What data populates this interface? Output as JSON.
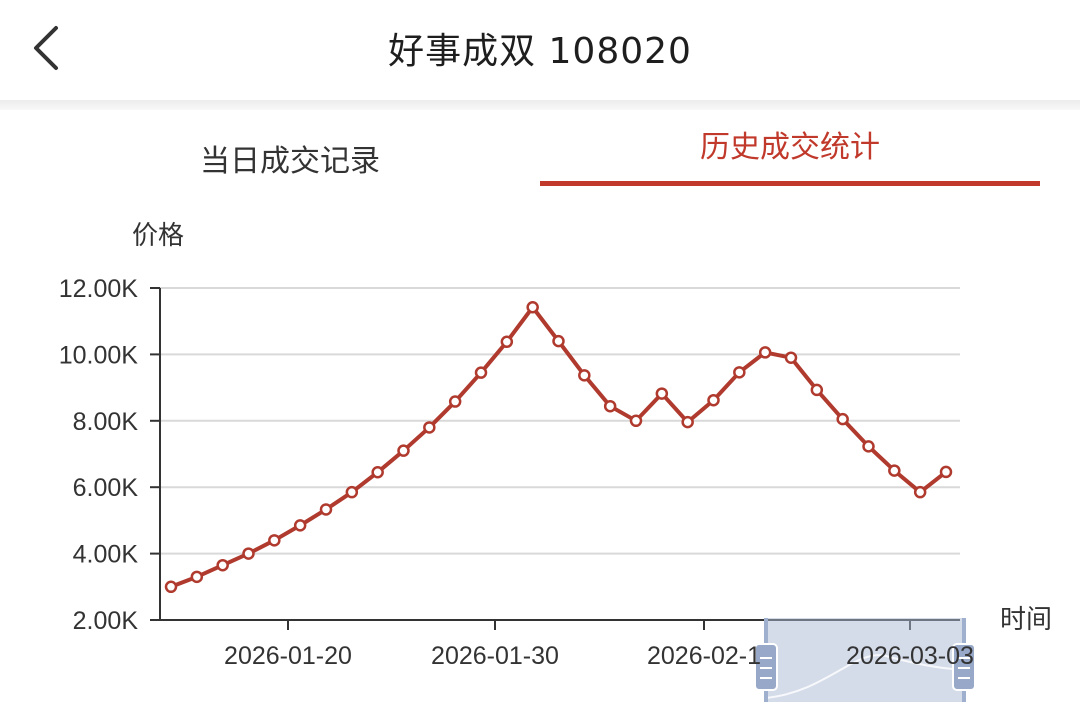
{
  "header": {
    "title": "好事成双 108020"
  },
  "tabs": [
    {
      "label": "当日成交记录",
      "active": false
    },
    {
      "label": "历史成交统计",
      "active": true
    }
  ],
  "colors": {
    "accent": "#c0392b",
    "line": "#b03a2e",
    "grid": "#d9d9d9",
    "slider": "#a9b8d4"
  },
  "chart_data": {
    "type": "line",
    "ylabel": "价格",
    "xlabel": "时间",
    "ylim": [
      2000,
      12000
    ],
    "y_ticks": [
      {
        "value": 2000,
        "label": "2.00K"
      },
      {
        "value": 4000,
        "label": "4.00K"
      },
      {
        "value": 6000,
        "label": "6.00K"
      },
      {
        "value": 8000,
        "label": "8.00K"
      },
      {
        "value": 10000,
        "label": "10.00K"
      },
      {
        "value": 12000,
        "label": "12.00K"
      }
    ],
    "x_ticks": [
      "2026-01-20",
      "2026-01-30",
      "2026-02-1",
      "2026-03-03"
    ],
    "series": [
      {
        "values": [
          3000,
          3300,
          3650,
          4000,
          4400,
          4850,
          5330,
          5850,
          6450,
          7100,
          7800,
          8580,
          9450,
          10380,
          11420,
          10400,
          9370,
          8440,
          8000,
          8820,
          7960,
          8620,
          9460,
          10060,
          9900,
          8930,
          8050,
          7230,
          6500,
          5850,
          6460
        ]
      }
    ],
    "grid": true,
    "zoom_slider": true
  }
}
